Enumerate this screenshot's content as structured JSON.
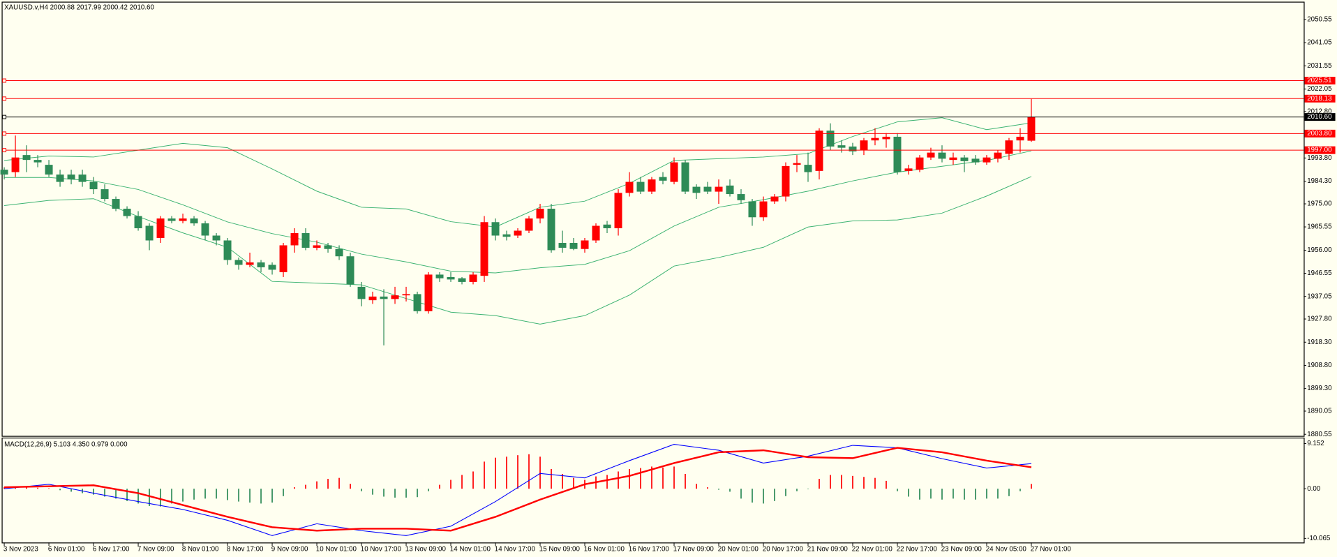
{
  "chart_data": [
    {
      "type": "candlestick",
      "title": "XAUUSD.v,H4  2000.88 2017.99 2000.42 2010.60",
      "up_color": "#ff0000",
      "down_color": "#2e8b57",
      "xlim": [
        -0.15,
        116.4
      ],
      "ylim": [
        1879.9,
        2057.5
      ],
      "xticks": [
        {
          "value": 0,
          "label": "3 Nov 2023"
        },
        {
          "value": 4,
          "label": "6 Nov 01:00"
        },
        {
          "value": 8,
          "label": "6 Nov 17:00"
        },
        {
          "value": 12,
          "label": "7 Nov 09:00"
        },
        {
          "value": 16,
          "label": "8 Nov 01:00"
        },
        {
          "value": 20,
          "label": "8 Nov 17:00"
        },
        {
          "value": 24,
          "label": "9 Nov 09:00"
        },
        {
          "value": 28,
          "label": "10 Nov 01:00"
        },
        {
          "value": 32,
          "label": "10 Nov 17:00"
        },
        {
          "value": 36,
          "label": "13 Nov 09:00"
        },
        {
          "value": 40,
          "label": "14 Nov 01:00"
        },
        {
          "value": 44,
          "label": "14 Nov 17:00"
        },
        {
          "value": 48,
          "label": "15 Nov 09:00"
        },
        {
          "value": 52,
          "label": "16 Nov 01:00"
        },
        {
          "value": 56,
          "label": "16 Nov 17:00"
        },
        {
          "value": 60,
          "label": "17 Nov 09:00"
        },
        {
          "value": 64,
          "label": "20 Nov 01:00"
        },
        {
          "value": 68,
          "label": "20 Nov 17:00"
        },
        {
          "value": 72,
          "label": "21 Nov 09:00"
        },
        {
          "value": 76,
          "label": "22 Nov 01:00"
        },
        {
          "value": 80,
          "label": "22 Nov 17:00"
        },
        {
          "value": 84,
          "label": "23 Nov 09:00"
        },
        {
          "value": 88,
          "label": "24 Nov 05:00"
        },
        {
          "value": 92,
          "label": "27 Nov 01:00"
        }
      ],
      "yticks": [
        2050.55,
        2041.05,
        2031.55,
        2022.05,
        {
          "value": 2012.8,
          "label": "2012.80"
        },
        {
          "value": 1993.8,
          "label": "1993.80"
        },
        {
          "value": 1984.3,
          "label": "1984.30"
        },
        {
          "value": 1975,
          "label": "1975.00"
        },
        1965.55,
        {
          "value": 1956,
          "label": "1956.00"
        },
        1946.55,
        1937.05,
        {
          "value": 1927.8,
          "label": "1927.80"
        },
        {
          "value": 1918.3,
          "label": "1918.30"
        },
        {
          "value": 1908.8,
          "label": "1908.80"
        },
        {
          "value": 1899.3,
          "label": "1899.30"
        },
        1890.05,
        1880.55
      ],
      "open": [
        1989,
        1988,
        1995,
        1993,
        1991,
        1987,
        1987,
        1987,
        1984,
        1981,
        1977,
        1973,
        1970,
        1966,
        1961,
        1969,
        1968,
        1969,
        1967,
        1962,
        1960,
        1952,
        1950,
        1951,
        1950,
        1947,
        1958,
        1963,
        1957,
        1958,
        1956.5,
        1953.5,
        1941,
        1935.5,
        1937,
        1936,
        1937.5,
        1938,
        1931,
        1946,
        1945,
        1944.5,
        1943,
        1945.5,
        1967.5,
        1962.5,
        1962,
        1964,
        1969,
        1973,
        1959,
        1959,
        1956.5,
        1960,
        1966.5,
        1965,
        1979.5,
        1984,
        1980,
        1986,
        1984,
        1992,
        1982,
        1982,
        1980,
        1982.5,
        1979,
        1976,
        1969.5,
        1976,
        1978,
        1991,
        1991,
        1988.5,
        2005,
        1999,
        1998.5,
        1997,
        2001,
        2001.5,
        2002.5,
        1988.5,
        1989,
        1994,
        1996,
        1993,
        1994,
        1993.5,
        1992,
        1993.5,
        1995.5,
        2001,
        2000.88
      ],
      "high": [
        1990,
        2003,
        1999,
        1995,
        1993,
        1989,
        1989,
        1989,
        1986,
        1983,
        1978,
        1974,
        1972,
        1967,
        1970,
        1970,
        1971,
        1970,
        1968,
        1963,
        1961,
        1953,
        1955,
        1952,
        1951,
        1959,
        1965,
        1965,
        1960,
        1959,
        1958,
        1955,
        1943,
        1939,
        1940,
        1941,
        1941,
        1939,
        1947,
        1947,
        1947,
        1945,
        1947,
        1970,
        1969,
        1964,
        1965,
        1970,
        1975,
        1975,
        1964,
        1961,
        1961,
        1967,
        1968,
        1981,
        1988,
        1986,
        1986,
        1988,
        1994,
        1993,
        1983,
        1984,
        1985,
        1985,
        1981,
        1977,
        1978,
        1979,
        1992,
        1995,
        1996,
        2006,
        2008,
        2001,
        2000,
        2002,
        2006,
        2004,
        2004,
        1991,
        1995,
        1998,
        1999,
        1996,
        1995,
        1995,
        1995,
        1997,
        2002,
        2006,
        2017.99
      ],
      "low": [
        1985,
        1986,
        1988,
        1990,
        1986,
        1982,
        1983,
        1982,
        1979,
        1976,
        1972,
        1969,
        1964,
        1956,
        1959,
        1967,
        1967,
        1966,
        1960,
        1958,
        1950,
        1948,
        1949,
        1947,
        1946,
        1945,
        1955,
        1956,
        1956,
        1955,
        1952,
        1941,
        1933,
        1934,
        1917,
        1934,
        1935,
        1930,
        1930,
        1943,
        1943,
        1942,
        1942,
        1943,
        1960,
        1960,
        1961,
        1963,
        1967,
        1955,
        1955,
        1956,
        1955,
        1959,
        1963,
        1962,
        1978,
        1979,
        1979,
        1983,
        1983,
        1979,
        1977,
        1979,
        1975,
        1978,
        1975,
        1966,
        1968,
        1975,
        1976,
        1988,
        1984,
        1985,
        1997,
        1996,
        1995,
        1995,
        1999,
        1998,
        1987,
        1987,
        1988,
        1993,
        1992,
        1991,
        1988,
        1991,
        1991,
        1992,
        1993,
        1996,
        2000.42
      ],
      "close": [
        1987,
        1994,
        1993,
        1992,
        1987,
        1984,
        1985,
        1984,
        1981,
        1977,
        1973,
        1970,
        1965,
        1960,
        1969,
        1968,
        1969,
        1967,
        1962,
        1960,
        1952,
        1950,
        1951,
        1949,
        1948,
        1958,
        1963,
        1957,
        1958,
        1956.5,
        1953.5,
        1942,
        1936,
        1937,
        1936,
        1937.5,
        1938,
        1931,
        1946,
        1944.5,
        1944,
        1943,
        1946,
        1967.5,
        1962,
        1961.5,
        1964,
        1969,
        1973,
        1956,
        1957,
        1956.5,
        1960,
        1966,
        1965,
        1979.5,
        1984,
        1980,
        1985,
        1984.5,
        1992,
        1980,
        1979.5,
        1980,
        1982,
        1979,
        1976.5,
        1969.5,
        1976,
        1978,
        1990.5,
        1991.7,
        1988,
        2005,
        1998.5,
        1998,
        1996.5,
        2001,
        2002,
        2002.5,
        1988,
        1989.5,
        1994,
        1996,
        1993.5,
        1994,
        1992.5,
        1992,
        1994,
        1996,
        2001,
        2002.5,
        2010.6
      ],
      "bollinger": {
        "color": "#3cb371",
        "x": [
          0,
          4,
          8,
          12,
          16,
          20,
          24,
          28,
          32,
          36,
          40,
          44,
          48,
          52,
          56,
          60,
          64,
          68,
          72,
          76,
          80,
          84,
          88,
          92
        ],
        "upper": [
          1992.8,
          1994.6,
          1994.2,
          1997.0,
          1999.8,
          1998.0,
          1989.3,
          1980.2,
          1973.6,
          1972.9,
          1967.7,
          1965.5,
          1973.6,
          1976.1,
          1983.4,
          1992.8,
          1993.5,
          1994.2,
          1995.6,
          2002.6,
          2008.6,
          2010.3,
          2005.4,
          2008.2
        ],
        "middle": [
          1985.8,
          1985.8,
          1984.4,
          1980.9,
          1974.6,
          1967.6,
          1962.8,
          1959.3,
          1954.4,
          1951.2,
          1947.4,
          1946.7,
          1948.8,
          1950.2,
          1955.8,
          1965.9,
          1973.6,
          1976.7,
          1980.2,
          1984.4,
          1988.0,
          1990.4,
          1992.8,
          1996.7
        ],
        "lower": [
          1974.3,
          1976.4,
          1977.1,
          1969.8,
          1963.1,
          1957.2,
          1943.2,
          1942.5,
          1941.8,
          1936.2,
          1930.6,
          1929.2,
          1925.7,
          1929.2,
          1937.6,
          1949.5,
          1953.0,
          1957.2,
          1965.5,
          1968.0,
          1968.4,
          1971.2,
          1978.2,
          1986.2
        ]
      },
      "levels": [
        {
          "value": 2025.51,
          "color": "#ff0000"
        },
        {
          "value": 2018.13,
          "color": "#ff0000"
        },
        {
          "value": 2010.6,
          "label": "2010.60",
          "color": "#000000"
        },
        {
          "value": 2003.8,
          "label": "2003.80",
          "color": "#ff0000"
        },
        {
          "value": 1997,
          "label": "1997.00",
          "color": "#ff0000"
        }
      ]
    },
    {
      "type": "macd",
      "title": "MACD(12,26,9) 5.103 4.350 0.979 0.000",
      "xlim": [
        -0.15,
        116.4
      ],
      "ylim": [
        -10.9,
        10.2
      ],
      "yticks": [
        9.152,
        {
          "value": 0,
          "label": "0.00"
        },
        -10.065
      ],
      "up_color": "#ff0000",
      "down_color": "#2e8b57",
      "histogram": [
        0.3,
        0.4,
        0.3,
        0.2,
        0.1,
        -0.3,
        -0.6,
        -0.9,
        -1.2,
        -1.6,
        -2.0,
        -2.5,
        -3.0,
        -3.5,
        -3.6,
        -3.0,
        -2.6,
        -2.2,
        -2.0,
        -2.0,
        -2.3,
        -2.6,
        -2.8,
        -3.0,
        -2.8,
        -1.5,
        0.3,
        0.8,
        1.5,
        2.0,
        2.2,
        1.0,
        -0.5,
        -1.2,
        -1.6,
        -1.8,
        -1.8,
        -1.7,
        -0.5,
        0.8,
        1.8,
        2.8,
        3.5,
        5.5,
        6.3,
        6.5,
        6.8,
        7.0,
        6.5,
        4.0,
        3.0,
        2.2,
        1.8,
        2.5,
        2.8,
        3.5,
        4.0,
        4.2,
        4.5,
        4.3,
        4.5,
        3.0,
        1.0,
        0.3,
        -0.2,
        -0.6,
        -2.0,
        -2.8,
        -3.0,
        -2.5,
        -1.5,
        -0.5,
        -0.1,
        2.0,
        2.8,
        2.8,
        2.6,
        2.4,
        2.2,
        1.6,
        -0.5,
        -1.6,
        -2.2,
        -2.0,
        -2.2,
        -2.0,
        -2.2,
        -2.2,
        -2.0,
        -2.0,
        -1.5,
        -0.5,
        0.979
      ],
      "x": [
        0,
        4,
        8,
        12,
        16,
        20,
        24,
        28,
        32,
        36,
        40,
        44,
        48,
        52,
        56,
        60,
        64,
        68,
        72,
        76,
        80,
        84,
        88,
        92
      ],
      "series": [
        {
          "color": "#0000ff",
          "values": [
            0.0,
            0.9,
            -0.9,
            -2.6,
            -4.2,
            -6.4,
            -9.5,
            -7.1,
            -8.5,
            -9.5,
            -7.6,
            -2.6,
            3.1,
            2.2,
            5.7,
            9.0,
            7.8,
            5.2,
            6.6,
            8.8,
            8.3,
            6.1,
            4.2,
            5.103
          ]
        },
        {
          "color": "#ff0000",
          "values": [
            0.3,
            0.5,
            0.7,
            -0.9,
            -3.3,
            -5.7,
            -7.8,
            -8.5,
            -8.1,
            -8.1,
            -8.5,
            -5.7,
            -2.2,
            0.9,
            2.6,
            5.2,
            7.4,
            7.8,
            6.4,
            6.2,
            8.3,
            7.4,
            5.7,
            4.35
          ]
        }
      ]
    }
  ]
}
